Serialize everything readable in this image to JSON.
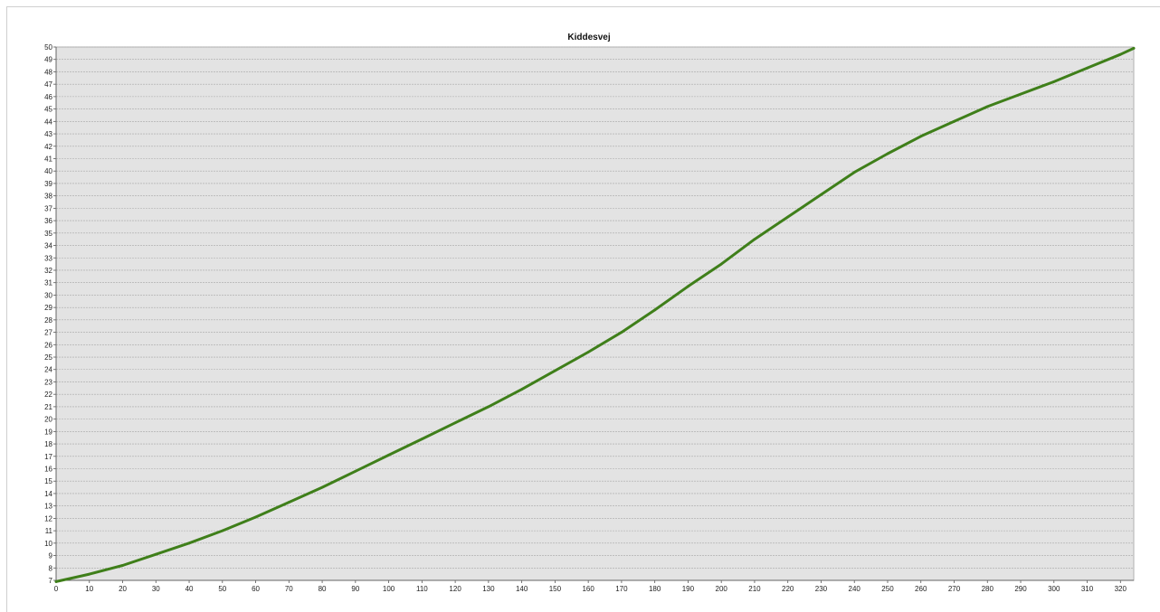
{
  "chart_data": {
    "type": "line",
    "title": "Kiddesvej",
    "xlabel": "",
    "ylabel": "",
    "xlim": [
      0,
      324
    ],
    "ylim": [
      7,
      50
    ],
    "x_ticks": [
      0,
      10,
      20,
      30,
      40,
      50,
      60,
      70,
      80,
      90,
      100,
      110,
      120,
      130,
      140,
      150,
      160,
      170,
      180,
      190,
      200,
      210,
      220,
      230,
      240,
      250,
      260,
      270,
      280,
      290,
      300,
      310,
      320
    ],
    "y_ticks": [
      7,
      8,
      9,
      10,
      11,
      12,
      13,
      14,
      15,
      16,
      17,
      18,
      19,
      20,
      21,
      22,
      23,
      24,
      25,
      26,
      27,
      28,
      29,
      30,
      31,
      32,
      33,
      34,
      35,
      36,
      37,
      38,
      39,
      40,
      41,
      42,
      43,
      44,
      45,
      46,
      47,
      48,
      49,
      50
    ],
    "grid": true,
    "legend": "none",
    "colors": {
      "line": "#3f7f1a",
      "plot_bg": "#e3e3e3",
      "grid": "#a8a8a8"
    },
    "series": [
      {
        "x": [
          0,
          10,
          20,
          30,
          40,
          50,
          60,
          70,
          80,
          90,
          100,
          110,
          120,
          130,
          140,
          150,
          160,
          170,
          180,
          190,
          200,
          210,
          220,
          230,
          240,
          250,
          260,
          270,
          280,
          290,
          300,
          310,
          320,
          324
        ],
        "y": [
          6.9,
          7.5,
          8.2,
          9.1,
          10.0,
          11.0,
          12.1,
          13.3,
          14.5,
          15.8,
          17.1,
          18.4,
          19.7,
          21.0,
          22.4,
          23.9,
          25.4,
          27.0,
          28.8,
          30.7,
          32.5,
          34.5,
          36.3,
          38.1,
          39.9,
          41.4,
          42.8,
          44.0,
          45.2,
          46.2,
          47.2,
          48.3,
          49.4,
          49.9
        ]
      }
    ]
  }
}
